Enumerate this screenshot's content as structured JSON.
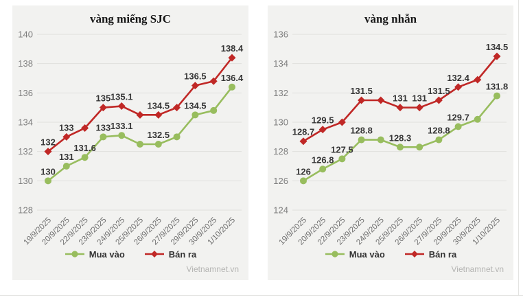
{
  "page": {
    "watermark": "Vietnamnet.vn"
  },
  "colors": {
    "buy": "#98bd5e",
    "sell": "#c02826",
    "card_bg": "#f2f2f0",
    "grid": "#e0e0dd",
    "tick_text": "#7d7d7d",
    "date_text": "#6e6e6e",
    "label_text": "#363636"
  },
  "chart_data": [
    {
      "type": "line",
      "title": "vàng miếng SJC",
      "x": [
        "19/9/2025",
        "20/9/2025",
        "22/9/2025",
        "23/9/2025",
        "24/9/2025",
        "25/9/2025",
        "26/9/2025",
        "27/9/2025",
        "29/9/2025",
        "30/9/2025",
        "1/10/2025"
      ],
      "ylim": [
        128,
        140
      ],
      "yticks": [
        128,
        130,
        132,
        134,
        136,
        138,
        140
      ],
      "grid": true,
      "legend_position": "bottom",
      "series": [
        {
          "name": "Mua vào",
          "color": "#98bd5e",
          "marker": "circle",
          "values": [
            130,
            131,
            131.6,
            133,
            133.1,
            132.5,
            132.5,
            133,
            134.5,
            134.8,
            136.4
          ],
          "point_labels": [
            "130",
            "131",
            "131.6",
            "133",
            "133.1",
            "",
            "132.5",
            "",
            "134.5",
            "",
            "136.4"
          ]
        },
        {
          "name": "Bán ra",
          "color": "#c02826",
          "marker": "diamond",
          "values": [
            132,
            133,
            133.6,
            135,
            135.1,
            134.5,
            134.5,
            135,
            136.5,
            136.8,
            138.4
          ],
          "point_labels": [
            "132",
            "133",
            "",
            "135",
            "135.1",
            "",
            "134.5",
            "",
            "136.5",
            "",
            "138.4"
          ]
        }
      ]
    },
    {
      "type": "line",
      "title": "vàng nhẫn",
      "x": [
        "19/9/2025",
        "20/9/2025",
        "22/9/2025",
        "23/9/2025",
        "24/9/2025",
        "25/9/2025",
        "26/9/2025",
        "27/9/2025",
        "29/9/2025",
        "30/9/2025",
        "1/10/2025"
      ],
      "ylim": [
        124,
        136
      ],
      "yticks": [
        124,
        126,
        128,
        130,
        132,
        134,
        136
      ],
      "grid": true,
      "legend_position": "bottom",
      "series": [
        {
          "name": "Mua vào",
          "color": "#98bd5e",
          "marker": "circle",
          "values": [
            126,
            126.8,
            127.5,
            128.8,
            128.8,
            128.3,
            128.3,
            128.8,
            129.7,
            130.2,
            131.8
          ],
          "point_labels": [
            "126",
            "126.8",
            "127.5",
            "128.8",
            "",
            "128.3",
            "",
            "128.8",
            "129.7",
            "",
            "131.8"
          ]
        },
        {
          "name": "Bán ra",
          "color": "#c02826",
          "marker": "diamond",
          "values": [
            128.7,
            129.5,
            130,
            131.5,
            131.5,
            131,
            131,
            131.5,
            132.4,
            132.9,
            134.5
          ],
          "point_labels": [
            "128.7",
            "129.5",
            "",
            "131.5",
            "",
            "131",
            "131",
            "131.5",
            "132.4",
            "",
            "134.5"
          ]
        }
      ]
    }
  ]
}
